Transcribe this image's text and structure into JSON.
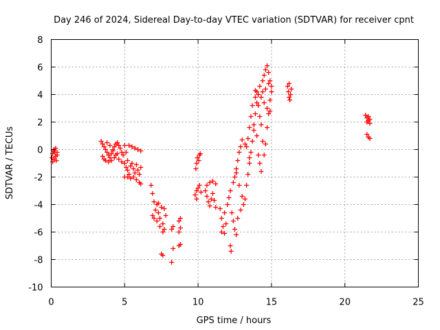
{
  "chart_data": {
    "type": "scatter",
    "title": "Day 246 of 2024, Sidereal Day-to-day VTEC variation (SDTVAR) for receiver cpnt",
    "xlabel": "GPS time / hours",
    "ylabel": "SDTVAR / TECUs",
    "xlim": [
      0,
      25
    ],
    "ylim": [
      -10,
      8
    ],
    "xticks": [
      0,
      5,
      10,
      15,
      20,
      25
    ],
    "yticks": [
      -10,
      -8,
      -6,
      -4,
      -2,
      0,
      2,
      4,
      6,
      8
    ],
    "grid": true,
    "marker": "+",
    "color": "#ff0000",
    "series": [
      {
        "name": "SDTVAR",
        "points": [
          [
            0.05,
            -0.6
          ],
          [
            0.1,
            -0.3
          ],
          [
            0.15,
            -0.1
          ],
          [
            0.2,
            0.0
          ],
          [
            0.25,
            -0.2
          ],
          [
            0.3,
            -0.5
          ],
          [
            0.35,
            -0.8
          ],
          [
            0.4,
            -0.4
          ],
          [
            0.2,
            -0.7
          ],
          [
            0.1,
            -0.9
          ],
          [
            0.3,
            0.1
          ],
          [
            0.4,
            -0.2
          ],
          [
            3.4,
            0.6
          ],
          [
            3.5,
            0.4
          ],
          [
            3.6,
            0.2
          ],
          [
            3.7,
            0.0
          ],
          [
            3.8,
            -0.2
          ],
          [
            3.9,
            -0.4
          ],
          [
            4.0,
            -0.6
          ],
          [
            4.1,
            -0.3
          ],
          [
            4.2,
            -0.1
          ],
          [
            4.3,
            0.2
          ],
          [
            4.4,
            0.4
          ],
          [
            4.5,
            0.5
          ],
          [
            4.6,
            0.3
          ],
          [
            4.7,
            0.1
          ],
          [
            4.8,
            -0.2
          ],
          [
            4.9,
            -0.4
          ],
          [
            3.5,
            -0.5
          ],
          [
            3.6,
            -0.7
          ],
          [
            3.7,
            -0.8
          ],
          [
            3.9,
            -0.9
          ],
          [
            4.1,
            -0.8
          ],
          [
            4.3,
            -0.6
          ],
          [
            4.5,
            -0.3
          ],
          [
            3.8,
            0.5
          ],
          [
            4.0,
            0.3
          ],
          [
            4.2,
            0.0
          ],
          [
            4.4,
            -0.4
          ],
          [
            4.6,
            -0.7
          ],
          [
            4.8,
            -0.9
          ],
          [
            5.0,
            0.3
          ],
          [
            5.1,
            -0.2
          ],
          [
            5.2,
            -0.8
          ],
          [
            5.0,
            -1.0
          ],
          [
            5.1,
            -1.3
          ],
          [
            5.2,
            -1.5
          ],
          [
            5.3,
            -1.8
          ],
          [
            5.4,
            -1.2
          ],
          [
            5.5,
            -1.0
          ],
          [
            5.6,
            -1.4
          ],
          [
            5.7,
            -1.7
          ],
          [
            5.8,
            -1.1
          ],
          [
            5.9,
            -1.5
          ],
          [
            6.0,
            -1.8
          ],
          [
            6.1,
            -1.3
          ],
          [
            5.0,
            -2.0
          ],
          [
            5.2,
            -2.0
          ],
          [
            5.4,
            -2.1
          ],
          [
            5.6,
            -2.0
          ],
          [
            5.8,
            -2.2
          ],
          [
            6.0,
            -2.4
          ],
          [
            6.1,
            -2.5
          ],
          [
            5.3,
            0.3
          ],
          [
            5.5,
            0.2
          ],
          [
            5.7,
            0.1
          ],
          [
            5.9,
            0.0
          ],
          [
            6.1,
            -0.1
          ],
          [
            6.8,
            -2.6
          ],
          [
            6.9,
            -3.2
          ],
          [
            7.0,
            -3.8
          ],
          [
            7.1,
            -4.4
          ],
          [
            7.2,
            -4.0
          ],
          [
            7.3,
            -4.6
          ],
          [
            7.4,
            -5.0
          ],
          [
            7.5,
            -4.2
          ],
          [
            7.6,
            -5.4
          ],
          [
            7.7,
            -5.8
          ],
          [
            7.8,
            -4.8
          ],
          [
            6.9,
            -4.8
          ],
          [
            7.0,
            -5.0
          ],
          [
            7.2,
            -5.2
          ],
          [
            7.4,
            -5.6
          ],
          [
            7.6,
            -6.0
          ],
          [
            7.7,
            -4.3
          ],
          [
            7.3,
            -3.9
          ],
          [
            7.5,
            -7.6
          ],
          [
            7.6,
            -7.7
          ],
          [
            8.2,
            -8.2
          ],
          [
            8.2,
            -5.8
          ],
          [
            8.3,
            -5.6
          ],
          [
            8.3,
            -7.2
          ],
          [
            8.7,
            -5.2
          ],
          [
            8.8,
            -5.0
          ],
          [
            8.7,
            -6.0
          ],
          [
            8.8,
            -5.7
          ],
          [
            8.7,
            -7.0
          ],
          [
            8.8,
            -6.9
          ],
          [
            9.8,
            -3.3
          ],
          [
            9.9,
            -3.0
          ],
          [
            10.0,
            -2.8
          ],
          [
            10.1,
            -2.6
          ],
          [
            10.2,
            -3.1
          ],
          [
            9.9,
            -3.6
          ],
          [
            9.85,
            -1.4
          ],
          [
            9.9,
            -1.0
          ],
          [
            9.95,
            -0.6
          ],
          [
            10.05,
            -0.8
          ],
          [
            10.1,
            -0.4
          ],
          [
            10.15,
            -0.3
          ],
          [
            10.5,
            -3.0
          ],
          [
            10.6,
            -3.4
          ],
          [
            10.7,
            -3.8
          ],
          [
            10.8,
            -4.1
          ],
          [
            10.9,
            -3.6
          ],
          [
            11.0,
            -3.2
          ],
          [
            11.1,
            -3.7
          ],
          [
            11.2,
            -4.2
          ],
          [
            10.6,
            -2.6
          ],
          [
            10.8,
            -2.4
          ],
          [
            11.0,
            -2.3
          ],
          [
            11.2,
            -2.5
          ],
          [
            11.5,
            -4.3
          ],
          [
            11.6,
            -5.0
          ],
          [
            11.7,
            -5.6
          ],
          [
            11.8,
            -6.1
          ],
          [
            11.9,
            -5.4
          ],
          [
            11.6,
            -6.0
          ],
          [
            11.8,
            -4.6
          ],
          [
            12.0,
            -4.0
          ],
          [
            12.1,
            -3.5
          ],
          [
            12.2,
            -3.0
          ],
          [
            12.2,
            -7.0
          ],
          [
            12.25,
            -7.4
          ],
          [
            12.3,
            -4.6
          ],
          [
            12.4,
            -5.2
          ],
          [
            12.5,
            -5.8
          ],
          [
            12.6,
            -6.2
          ],
          [
            12.7,
            -5.0
          ],
          [
            12.4,
            -2.4
          ],
          [
            12.5,
            -2.0
          ],
          [
            12.6,
            -1.4
          ],
          [
            12.7,
            -0.8
          ],
          [
            12.8,
            -0.2
          ],
          [
            12.9,
            0.2
          ],
          [
            12.6,
            -1.7
          ],
          [
            12.8,
            -2.6
          ],
          [
            13.0,
            -3.4
          ],
          [
            13.1,
            -4.0
          ],
          [
            13.2,
            -3.6
          ],
          [
            12.9,
            -4.4
          ],
          [
            13.3,
            -2.6
          ],
          [
            13.4,
            -1.8
          ],
          [
            13.5,
            -1.0
          ],
          [
            13.6,
            -0.2
          ],
          [
            13.7,
            0.6
          ],
          [
            13.8,
            1.4
          ],
          [
            13.4,
            0.8
          ],
          [
            13.5,
            1.6
          ],
          [
            13.6,
            2.4
          ],
          [
            13.7,
            3.2
          ],
          [
            13.3,
            0.2
          ],
          [
            13.5,
            -0.6
          ],
          [
            13.0,
            0.7
          ],
          [
            13.2,
            0.4
          ],
          [
            13.8,
            1.8
          ],
          [
            13.9,
            2.6
          ],
          [
            14.0,
            3.4
          ],
          [
            14.1,
            4.0
          ],
          [
            14.2,
            2.4
          ],
          [
            14.3,
            1.8
          ],
          [
            14.4,
            0.6
          ],
          [
            14.5,
            -0.4
          ],
          [
            14.6,
            0.4
          ],
          [
            14.7,
            1.6
          ],
          [
            14.8,
            2.6
          ],
          [
            14.9,
            3.6
          ],
          [
            15.0,
            4.6
          ],
          [
            14.0,
            1.0
          ],
          [
            14.1,
            -0.4
          ],
          [
            14.2,
            -1.0
          ],
          [
            14.3,
            -1.6
          ],
          [
            13.9,
            3.8
          ],
          [
            14.0,
            4.2
          ],
          [
            14.2,
            4.6
          ],
          [
            14.4,
            5.0
          ],
          [
            14.5,
            5.4
          ],
          [
            14.6,
            5.8
          ],
          [
            14.7,
            6.1
          ],
          [
            14.8,
            5.6
          ],
          [
            14.9,
            5.0
          ],
          [
            15.0,
            4.2
          ],
          [
            14.3,
            3.8
          ],
          [
            14.5,
            3.4
          ],
          [
            14.7,
            3.0
          ],
          [
            14.9,
            2.8
          ],
          [
            14.1,
            3.2
          ],
          [
            14.6,
            4.4
          ],
          [
            14.8,
            4.8
          ],
          [
            14.4,
            4.2
          ],
          [
            13.9,
            4.3
          ],
          [
            16.1,
            4.6
          ],
          [
            16.15,
            4.2
          ],
          [
            16.2,
            3.8
          ],
          [
            16.25,
            3.6
          ],
          [
            16.3,
            4.0
          ],
          [
            16.35,
            4.4
          ],
          [
            16.2,
            4.8
          ],
          [
            21.4,
            2.5
          ],
          [
            21.5,
            2.3
          ],
          [
            21.6,
            2.1
          ],
          [
            21.7,
            1.9
          ],
          [
            21.5,
            2.0
          ],
          [
            21.6,
            2.4
          ],
          [
            21.7,
            2.2
          ],
          [
            21.5,
            1.1
          ],
          [
            21.6,
            0.9
          ],
          [
            21.7,
            0.8
          ]
        ]
      }
    ]
  }
}
